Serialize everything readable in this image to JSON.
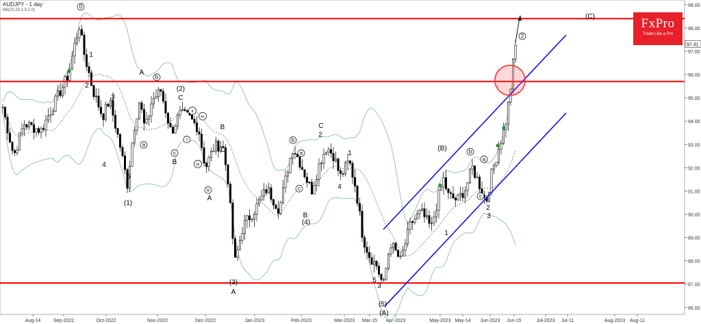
{
  "header": {
    "symbol": "AUDJPY - 1 day",
    "indicator": "BB(20,20.2,0,2.0)"
  },
  "logo": {
    "name": "FxPro",
    "tagline": "Trade Like a Pro"
  },
  "colors": {
    "level_line": "#ff0000",
    "channel": "#0000ff",
    "bands": "#8cbfae",
    "basis": "#555555",
    "candle": "#000000",
    "highlight": "#ff3333",
    "marker": "#2e8b3e",
    "logo_bg": "#e8202a"
  },
  "chart_data": {
    "type": "candlestick",
    "title": "AUDJPY - 1 day",
    "ylim": [
      85.7,
      99.2
    ],
    "y_ticks": [
      "99.00",
      "98.00",
      "97.00",
      "96.00",
      "95.00",
      "94.00",
      "93.00",
      "92.00",
      "91.00",
      "90.00",
      "89.00",
      "88.00",
      "87.00",
      "86.00"
    ],
    "current_price": "97.31",
    "x_ticks": [
      "Aug-14",
      "Sep-2022",
      "Oct-2022",
      "Nov-2022",
      "Dec-2022",
      "Jan-2023",
      "Feb-2023",
      "Mar-2023",
      "Mar-15",
      "Apr-2023",
      "May-2023",
      "May-14",
      "Jun-2023",
      "Jun-15",
      "Jul-2023",
      "Jul-11",
      "Aug-2023",
      "Aug-11"
    ],
    "horizontal_levels": [
      98.4,
      95.7,
      87.05
    ],
    "channel_lines": [
      {
        "from": [
          "Mar-15",
          89.35
        ],
        "to": [
          "Jul-2023",
          97.7
        ]
      },
      {
        "from": [
          "Mar-15",
          86.05
        ],
        "to": [
          "Jul-2023",
          94.35
        ]
      }
    ],
    "highlight_circle": {
      "date": "Jun-15",
      "price": 95.75
    },
    "wave_labels": [
      {
        "text": "0",
        "circled": true
      },
      {
        "text": "1"
      },
      {
        "text": "2"
      },
      {
        "text": "3"
      },
      {
        "text": "4"
      },
      {
        "text": "5"
      },
      {
        "text": "(1)"
      },
      {
        "text": "A"
      },
      {
        "text": "b",
        "circled": true
      },
      {
        "text": "a",
        "circled": true
      },
      {
        "text": "(2)"
      },
      {
        "text": "C"
      },
      {
        "text": "ii",
        "circled": true
      },
      {
        "text": "iv",
        "circled": true
      },
      {
        "text": "c",
        "circled": true
      },
      {
        "text": "B"
      },
      {
        "text": "i",
        "circled": true
      },
      {
        "text": "iii",
        "circled": true
      },
      {
        "text": "v",
        "circled": true
      },
      {
        "text": "A"
      },
      {
        "text": "B"
      },
      {
        "text": "C"
      },
      {
        "text": "(3)"
      },
      {
        "text": "A"
      },
      {
        "text": "b",
        "circled": true
      },
      {
        "text": "a",
        "circled": true
      },
      {
        "text": "c",
        "circled": true
      },
      {
        "text": "B"
      },
      {
        "text": "(4)"
      },
      {
        "text": "C"
      },
      {
        "text": "2"
      },
      {
        "text": "1"
      },
      {
        "text": "4"
      },
      {
        "text": "3"
      },
      {
        "text": "5"
      },
      {
        "text": "(5)"
      },
      {
        "text": "(A)"
      },
      {
        "text": "(B)"
      },
      {
        "text": "1"
      },
      {
        "text": "b",
        "circled": true
      },
      {
        "text": "a",
        "circled": true
      },
      {
        "text": "c",
        "circled": true
      },
      {
        "text": "2"
      },
      {
        "text": "3"
      },
      {
        "text": "2",
        "circled": true
      },
      {
        "text": "(C)"
      }
    ],
    "legend": []
  }
}
